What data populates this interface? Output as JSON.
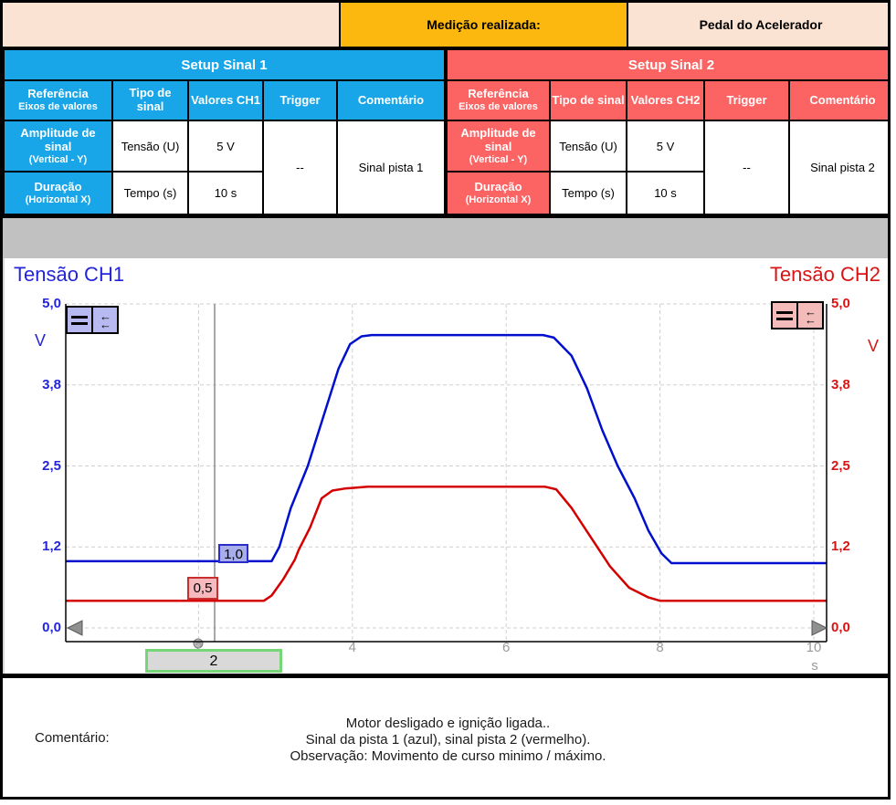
{
  "header": {
    "measurement_label": "Medição realizada:",
    "measurement_value": "Pedal do Acelerador"
  },
  "setup1": {
    "title": "Setup Sinal 1",
    "color": "#18A6E8",
    "columns": [
      {
        "label": "Referência",
        "sub": "Eixos de valores"
      },
      {
        "label": "Tipo de sinal"
      },
      {
        "label": "Valores CH1"
      },
      {
        "label": "Trigger"
      },
      {
        "label": "Comentário"
      }
    ],
    "rows": [
      {
        "ref": "Amplitude de sinal",
        "ref_sub": "(Vertical - Y)",
        "tipo": "Tensão (U)",
        "valor": "5 V"
      },
      {
        "ref": "Duração",
        "ref_sub": "(Horizontal X)",
        "tipo": "Tempo (s)",
        "valor": "10 s"
      }
    ],
    "trigger": "--",
    "comentario": "Sinal pista 1"
  },
  "setup2": {
    "title": "Setup Sinal 2",
    "color": "#FC6363",
    "columns": [
      {
        "label": "Referência",
        "sub": "Eixos de valores"
      },
      {
        "label": "Tipo de sinal"
      },
      {
        "label": "Valores CH2"
      },
      {
        "label": "Trigger"
      },
      {
        "label": "Comentário"
      }
    ],
    "rows": [
      {
        "ref": "Amplitude de sinal",
        "ref_sub": "(Vertical - Y)",
        "tipo": "Tensão (U)",
        "valor": "5 V"
      },
      {
        "ref": "Duração",
        "ref_sub": "(Horizontal X)",
        "tipo": "Tempo (s)",
        "valor": "10 s"
      }
    ],
    "trigger": "--",
    "comentario": "Sinal pista 2"
  },
  "chart": {
    "ch1_title": "Tensão CH1",
    "ch2_title": "Tensão CH2",
    "y_unit": "V",
    "x_unit": "s",
    "y_ticks": [
      "5,0",
      "3,8",
      "2,5",
      "1,2",
      "0,0"
    ],
    "x_ticks": [
      "2",
      "4",
      "6",
      "8",
      "10"
    ],
    "marker_ch1": "1,0",
    "marker_ch2": "0,5",
    "cursor_value": "2",
    "colors": {
      "ch1_curve": "#000FCE",
      "ch2_curve": "#D40000",
      "grid": "#CFCFCF",
      "cursor": "#8C8C8C"
    }
  },
  "chart_data": {
    "type": "line",
    "title": "",
    "xlabel": "s",
    "ylabel": "V",
    "xlim": [
      0,
      10.2
    ],
    "ylim": [
      0,
      5
    ],
    "grid": true,
    "x_tick_values": [
      2,
      4,
      6,
      8,
      10
    ],
    "y_tick_values": [
      5.0,
      3.75,
      2.5,
      1.25,
      0.0
    ],
    "cursor_time": 2,
    "series": [
      {
        "name": "Tensão CH1",
        "color": "#000FCE",
        "points": [
          [
            0.27,
            1.03
          ],
          [
            2.95,
            1.03
          ],
          [
            3.05,
            1.25
          ],
          [
            3.2,
            1.85
          ],
          [
            3.42,
            2.5
          ],
          [
            3.62,
            3.25
          ],
          [
            3.82,
            4.0
          ],
          [
            3.97,
            4.38
          ],
          [
            4.12,
            4.5
          ],
          [
            4.25,
            4.52
          ],
          [
            6.48,
            4.52
          ],
          [
            6.62,
            4.48
          ],
          [
            6.85,
            4.2
          ],
          [
            7.05,
            3.7
          ],
          [
            7.25,
            3.05
          ],
          [
            7.45,
            2.5
          ],
          [
            7.67,
            2.0
          ],
          [
            7.85,
            1.5
          ],
          [
            8.02,
            1.15
          ],
          [
            8.15,
            1.0
          ],
          [
            10.17,
            1.0
          ]
        ]
      },
      {
        "name": "Tensão CH2",
        "color": "#D40000",
        "points": [
          [
            0.27,
            0.42
          ],
          [
            2.85,
            0.42
          ],
          [
            2.95,
            0.5
          ],
          [
            3.1,
            0.75
          ],
          [
            3.25,
            1.05
          ],
          [
            3.3,
            1.2
          ],
          [
            3.45,
            1.55
          ],
          [
            3.6,
            2.0
          ],
          [
            3.74,
            2.12
          ],
          [
            3.9,
            2.15
          ],
          [
            4.2,
            2.18
          ],
          [
            6.5,
            2.18
          ],
          [
            6.65,
            2.14
          ],
          [
            6.85,
            1.85
          ],
          [
            7.1,
            1.4
          ],
          [
            7.35,
            0.95
          ],
          [
            7.6,
            0.62
          ],
          [
            7.85,
            0.47
          ],
          [
            8.0,
            0.42
          ],
          [
            10.17,
            0.42
          ]
        ]
      }
    ]
  },
  "comment": {
    "label": "Comentário:",
    "lines": [
      "Motor desligado e ignição ligada..",
      "Sinal da pista 1 (azul), sinal pista 2 (vermelho).",
      "Observação: Movimento de curso minimo / máximo."
    ]
  }
}
